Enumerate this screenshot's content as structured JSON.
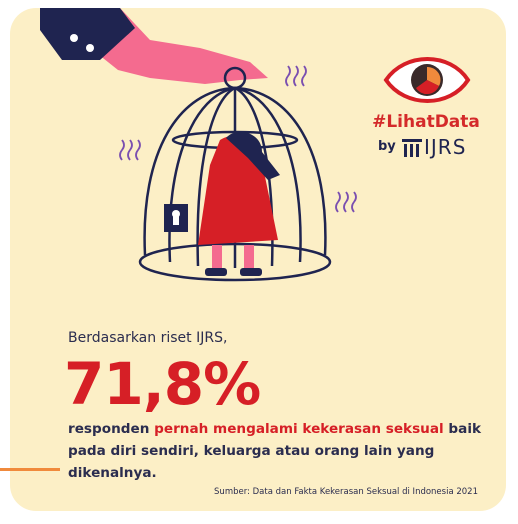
{
  "badge": {
    "hashtag": "#LihatData",
    "by": "by",
    "org": "IJRS"
  },
  "body": {
    "intro": "Berdasarkan riset IJRS,",
    "figure": "71,8%",
    "text_before": "responden ",
    "text_highlight": "pernah mengalami kekerasan seksual",
    "text_after": " baik pada diri sendiri, keluarga atau orang lain yang dikenalnya."
  },
  "source": "Sumber: Data dan Fakta Kekerasan Seksual di Indonesia 2021"
}
